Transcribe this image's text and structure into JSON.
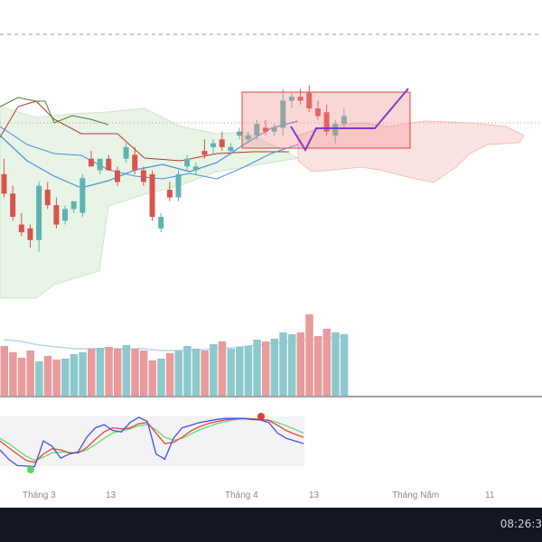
{
  "time_axis": {
    "labels": [
      "Tháng 3",
      "13",
      "Tháng 4",
      "13",
      "Tháng Năm",
      "11"
    ]
  },
  "status_bar": {
    "clock": "08:26:3"
  },
  "colors": {
    "up": "#5fb3b0",
    "down": "#d9534f",
    "volume_up": "#8cc8cc",
    "volume_down": "#e89a9c",
    "cloud_bull": "#dff0dd",
    "cloud_bear": "#f9dad7",
    "projection": "#7b3fc4",
    "stoch_k": "#3f52e8",
    "stoch_d": "#e5463c",
    "stoch_slow": "#6cd86c",
    "background": "#ffffff",
    "status_bar": "#131722"
  },
  "chart_data": {
    "type": "candlestick",
    "panes": [
      "price",
      "volume",
      "stochastic"
    ],
    "candles": [
      {
        "o": 52,
        "h": 56,
        "l": 46,
        "c": 47
      },
      {
        "o": 47,
        "h": 49,
        "l": 40,
        "c": 41
      },
      {
        "o": 39,
        "h": 42,
        "l": 36,
        "c": 37
      },
      {
        "o": 38,
        "h": 39,
        "l": 33,
        "c": 35
      },
      {
        "o": 35,
        "h": 50,
        "l": 32,
        "c": 49
      },
      {
        "o": 48,
        "h": 50,
        "l": 43,
        "c": 44
      },
      {
        "o": 44,
        "h": 46,
        "l": 38,
        "c": 39
      },
      {
        "o": 40,
        "h": 44,
        "l": 39,
        "c": 43
      },
      {
        "o": 43,
        "h": 45,
        "l": 42,
        "c": 45
      },
      {
        "o": 42,
        "h": 52,
        "l": 41,
        "c": 51
      },
      {
        "o": 56,
        "h": 58,
        "l": 54,
        "c": 54
      },
      {
        "o": 53,
        "h": 56,
        "l": 52,
        "c": 56
      },
      {
        "o": 56,
        "h": 57,
        "l": 53,
        "c": 53
      },
      {
        "o": 53,
        "h": 54,
        "l": 49,
        "c": 50
      },
      {
        "o": 56,
        "h": 60,
        "l": 55,
        "c": 59
      },
      {
        "o": 57,
        "h": 59,
        "l": 52,
        "c": 53
      },
      {
        "o": 53,
        "h": 54,
        "l": 49,
        "c": 50
      },
      {
        "o": 52,
        "h": 53,
        "l": 40,
        "c": 41
      },
      {
        "o": 38,
        "h": 42,
        "l": 37,
        "c": 41
      },
      {
        "o": 48,
        "h": 50,
        "l": 45,
        "c": 46
      },
      {
        "o": 46,
        "h": 53,
        "l": 45,
        "c": 52
      },
      {
        "o": 54,
        "h": 57,
        "l": 53,
        "c": 56
      },
      {
        "o": 53,
        "h": 55,
        "l": 52,
        "c": 54
      },
      {
        "o": 58,
        "h": 61,
        "l": 56,
        "c": 57
      },
      {
        "o": 59,
        "h": 61,
        "l": 57,
        "c": 60
      },
      {
        "o": 61,
        "h": 63,
        "l": 58,
        "c": 59
      },
      {
        "o": 58,
        "h": 60,
        "l": 57,
        "c": 59
      },
      {
        "o": 62,
        "h": 64,
        "l": 61,
        "c": 63
      },
      {
        "o": 61,
        "h": 63,
        "l": 60,
        "c": 62
      },
      {
        "o": 62,
        "h": 66,
        "l": 61,
        "c": 65
      },
      {
        "o": 64,
        "h": 66,
        "l": 62,
        "c": 63
      },
      {
        "o": 63,
        "h": 65,
        "l": 62,
        "c": 64
      },
      {
        "o": 64,
        "h": 74,
        "l": 62,
        "c": 71
      },
      {
        "o": 71,
        "h": 73,
        "l": 69,
        "c": 72
      },
      {
        "o": 72,
        "h": 74,
        "l": 70,
        "c": 71
      },
      {
        "o": 73,
        "h": 75,
        "l": 68,
        "c": 69
      },
      {
        "o": 69,
        "h": 71,
        "l": 66,
        "c": 67
      },
      {
        "o": 68,
        "h": 70,
        "l": 62,
        "c": 63
      },
      {
        "o": 62,
        "h": 66,
        "l": 60,
        "c": 65
      },
      {
        "o": 65,
        "h": 69,
        "l": 64,
        "c": 67
      }
    ],
    "volume": [
      55,
      48,
      42,
      50,
      38,
      44,
      40,
      41,
      46,
      48,
      52,
      53,
      54,
      52,
      56,
      52,
      50,
      39,
      41,
      47,
      50,
      55,
      52,
      50,
      57,
      60,
      52,
      54,
      55,
      62,
      60,
      63,
      70,
      68,
      70,
      90,
      66,
      74,
      70,
      68
    ],
    "volume_ma": [
      62,
      61,
      60,
      58,
      56,
      55,
      54,
      53,
      52,
      52,
      52,
      52,
      52,
      52,
      52,
      52,
      52,
      51,
      50,
      50,
      50,
      50,
      51,
      51,
      52,
      53,
      53,
      54,
      55,
      56,
      57,
      58,
      59,
      60,
      61,
      62,
      63,
      64,
      65,
      66
    ],
    "stochastic": {
      "k": [
        38,
        20,
        8,
        7,
        6,
        55,
        45,
        22,
        30,
        34,
        62,
        80,
        86,
        75,
        72,
        90,
        100,
        92,
        30,
        20,
        60,
        80,
        85,
        90,
        93,
        96,
        98,
        98,
        98,
        96,
        95,
        90,
        70,
        60,
        55,
        50
      ],
      "d": [
        55,
        42,
        30,
        18,
        14,
        30,
        40,
        38,
        32,
        32,
        42,
        58,
        72,
        80,
        78,
        80,
        88,
        90,
        70,
        50,
        52,
        62,
        74,
        82,
        88,
        92,
        95,
        97,
        98,
        97,
        96,
        94,
        85,
        75,
        68,
        62
      ],
      "slow": [
        60,
        50,
        38,
        26,
        18,
        24,
        32,
        34,
        33,
        32,
        38,
        48,
        60,
        70,
        74,
        78,
        84,
        86,
        76,
        62,
        56,
        60,
        68,
        76,
        82,
        88,
        92,
        95,
        97,
        97,
        96,
        95,
        90,
        84,
        77,
        70
      ]
    },
    "x_tick_labels": [
      "Tháng 3",
      "13",
      "Tháng 4",
      "13",
      "Tháng Năm",
      "11"
    ],
    "grid": false
  }
}
